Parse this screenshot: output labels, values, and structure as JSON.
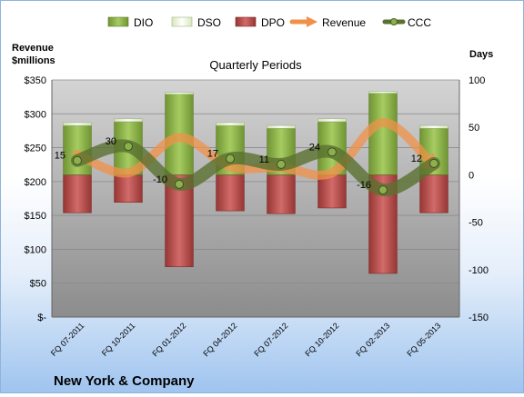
{
  "chart_data": {
    "type": "bar",
    "title": "Quarterly Periods",
    "company": "New York & Company",
    "y_left_label": [
      "Revenue",
      "$millions"
    ],
    "y_right_label": "Days",
    "ylim_left": [
      0,
      350
    ],
    "ylim_right": [
      -150,
      100
    ],
    "yticks_left": [
      "$-",
      "$50",
      "$100",
      "$150",
      "$200",
      "$250",
      "$300",
      "$350"
    ],
    "yticks_right": [
      "-150",
      "-100",
      "-50",
      "0",
      "50",
      "100"
    ],
    "categories": [
      "FQ 07-2011",
      "FQ 10-2011",
      "FQ 01-2012",
      "FQ 04-2012",
      "FQ 07-2012",
      "FQ 10-2012",
      "FQ 02-2013",
      "FQ 05-2013"
    ],
    "series": [
      {
        "name": "DIO",
        "axis": "right",
        "values": [
          52,
          56,
          85,
          52,
          49,
          56,
          86,
          49
        ]
      },
      {
        "name": "DSO",
        "axis": "right",
        "values": [
          3,
          3,
          2,
          3,
          3,
          3,
          2,
          3
        ]
      },
      {
        "name": "DPO",
        "axis": "right",
        "values": [
          -40,
          -29,
          -97,
          -38,
          -41,
          -35,
          -104,
          -40
        ]
      },
      {
        "name": "Revenue",
        "axis": "left",
        "values": [
          240,
          213,
          265,
          222,
          221,
          213,
          287,
          223
        ]
      },
      {
        "name": "CCC",
        "axis": "right",
        "values": [
          15,
          30,
          -10,
          17,
          11,
          24,
          -16,
          12
        ]
      }
    ],
    "ccc_labels": [
      "15",
      "30",
      "-10",
      "17",
      "11",
      "24",
      "-16",
      "12"
    ],
    "legend_position": "top",
    "colors": {
      "DIO": "#8db34a",
      "DSO": "#e9f2d4",
      "DPO": "#c0504d",
      "Revenue": "#f0914a",
      "CCC": "#5a7030"
    }
  }
}
